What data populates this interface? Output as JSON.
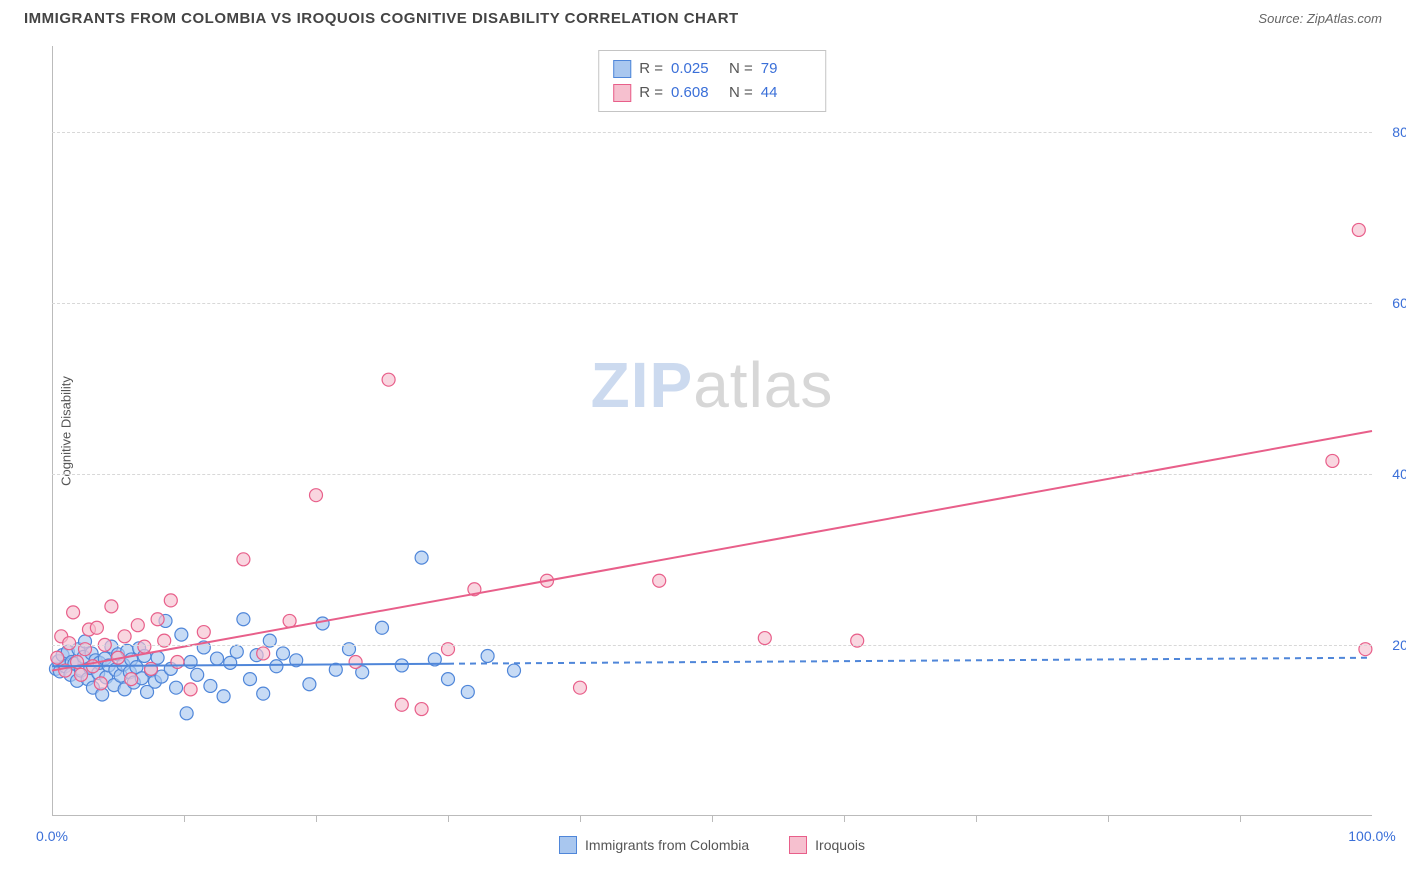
{
  "header": {
    "title": "IMMIGRANTS FROM COLOMBIA VS IROQUOIS COGNITIVE DISABILITY CORRELATION CHART",
    "source_label": "Source:",
    "source_value": "ZipAtlas.com"
  },
  "axes": {
    "y_label": "Cognitive Disability",
    "y_ticks": [
      20.0,
      40.0,
      60.0,
      80.0
    ],
    "y_tick_labels": [
      "20.0%",
      "40.0%",
      "60.0%",
      "80.0%"
    ],
    "y_domain_min": 0.0,
    "y_domain_max": 90.0,
    "x_domain_min": 0.0,
    "x_domain_max": 100.0,
    "x_end_labels": [
      "0.0%",
      "100.0%"
    ],
    "x_minor_ticks": [
      10,
      20,
      30,
      40,
      50,
      60,
      70,
      80,
      90
    ]
  },
  "series": {
    "a": {
      "name": "Immigrants from Colombia",
      "fill": "#a9c7ef",
      "stroke": "#4f86d9",
      "r_value": "0.025",
      "n_value": "79",
      "trend": {
        "y_at_x0": 17.5,
        "y_at_x100": 18.5,
        "solid_until_x": 30,
        "dashed": true
      },
      "points": [
        [
          0.3,
          17.2
        ],
        [
          0.5,
          18.1
        ],
        [
          0.6,
          16.9
        ],
        [
          0.8,
          18.8
        ],
        [
          1.0,
          17.5
        ],
        [
          1.2,
          19.2
        ],
        [
          1.4,
          16.5
        ],
        [
          1.5,
          18.0
        ],
        [
          1.7,
          17.8
        ],
        [
          1.9,
          15.8
        ],
        [
          2.0,
          19.5
        ],
        [
          2.2,
          17.0
        ],
        [
          2.4,
          18.6
        ],
        [
          2.5,
          20.4
        ],
        [
          2.7,
          16.0
        ],
        [
          2.9,
          17.3
        ],
        [
          3.0,
          19.0
        ],
        [
          3.1,
          15.0
        ],
        [
          3.3,
          18.2
        ],
        [
          3.5,
          16.7
        ],
        [
          3.6,
          17.9
        ],
        [
          3.8,
          14.2
        ],
        [
          4.0,
          18.4
        ],
        [
          4.1,
          16.2
        ],
        [
          4.3,
          17.6
        ],
        [
          4.5,
          19.8
        ],
        [
          4.7,
          15.3
        ],
        [
          4.8,
          17.1
        ],
        [
          5.0,
          18.9
        ],
        [
          5.2,
          16.4
        ],
        [
          5.4,
          17.7
        ],
        [
          5.5,
          14.8
        ],
        [
          5.7,
          19.3
        ],
        [
          5.9,
          16.8
        ],
        [
          6.0,
          18.3
        ],
        [
          6.2,
          15.6
        ],
        [
          6.4,
          17.4
        ],
        [
          6.6,
          19.6
        ],
        [
          6.8,
          16.1
        ],
        [
          7.0,
          18.7
        ],
        [
          7.2,
          14.5
        ],
        [
          7.5,
          17.0
        ],
        [
          7.8,
          15.7
        ],
        [
          8.0,
          18.5
        ],
        [
          8.3,
          16.3
        ],
        [
          8.6,
          22.8
        ],
        [
          9.0,
          17.2
        ],
        [
          9.4,
          15.0
        ],
        [
          9.8,
          21.2
        ],
        [
          10.2,
          12.0
        ],
        [
          10.5,
          18.0
        ],
        [
          11.0,
          16.5
        ],
        [
          11.5,
          19.7
        ],
        [
          12.0,
          15.2
        ],
        [
          12.5,
          18.4
        ],
        [
          13.0,
          14.0
        ],
        [
          13.5,
          17.9
        ],
        [
          14.0,
          19.2
        ],
        [
          14.5,
          23.0
        ],
        [
          15.0,
          16.0
        ],
        [
          15.5,
          18.8
        ],
        [
          16.0,
          14.3
        ],
        [
          16.5,
          20.5
        ],
        [
          17.0,
          17.5
        ],
        [
          17.5,
          19.0
        ],
        [
          18.5,
          18.2
        ],
        [
          19.5,
          15.4
        ],
        [
          20.5,
          22.5
        ],
        [
          21.5,
          17.1
        ],
        [
          22.5,
          19.5
        ],
        [
          23.5,
          16.8
        ],
        [
          25.0,
          22.0
        ],
        [
          26.5,
          17.6
        ],
        [
          28.0,
          30.2
        ],
        [
          29.0,
          18.3
        ],
        [
          30.0,
          16.0
        ],
        [
          31.5,
          14.5
        ],
        [
          33.0,
          18.7
        ],
        [
          35.0,
          17.0
        ]
      ]
    },
    "b": {
      "name": "Iroquois",
      "fill": "#f6c0cf",
      "stroke": "#e85f8a",
      "r_value": "0.608",
      "n_value": "44",
      "trend": {
        "y_at_x0": 17.0,
        "y_at_x100": 45.0,
        "solid_until_x": 100,
        "dashed": false
      },
      "points": [
        [
          0.4,
          18.5
        ],
        [
          0.7,
          21.0
        ],
        [
          1.0,
          17.0
        ],
        [
          1.3,
          20.2
        ],
        [
          1.6,
          23.8
        ],
        [
          1.9,
          18.0
        ],
        [
          2.2,
          16.5
        ],
        [
          2.5,
          19.5
        ],
        [
          2.8,
          21.8
        ],
        [
          3.1,
          17.5
        ],
        [
          3.4,
          22.0
        ],
        [
          3.7,
          15.5
        ],
        [
          4.0,
          20.0
        ],
        [
          4.5,
          24.5
        ],
        [
          5.0,
          18.5
        ],
        [
          5.5,
          21.0
        ],
        [
          6.0,
          16.0
        ],
        [
          6.5,
          22.3
        ],
        [
          7.0,
          19.8
        ],
        [
          7.5,
          17.2
        ],
        [
          8.0,
          23.0
        ],
        [
          8.5,
          20.5
        ],
        [
          9.0,
          25.2
        ],
        [
          9.5,
          18.0
        ],
        [
          10.5,
          14.8
        ],
        [
          11.5,
          21.5
        ],
        [
          14.5,
          30.0
        ],
        [
          16.0,
          19.0
        ],
        [
          18.0,
          22.8
        ],
        [
          20.0,
          37.5
        ],
        [
          23.0,
          18.0
        ],
        [
          25.5,
          51.0
        ],
        [
          26.5,
          13.0
        ],
        [
          28.0,
          12.5
        ],
        [
          30.0,
          19.5
        ],
        [
          32.0,
          26.5
        ],
        [
          37.5,
          27.5
        ],
        [
          40.0,
          15.0
        ],
        [
          46.0,
          27.5
        ],
        [
          54.0,
          20.8
        ],
        [
          61.0,
          20.5
        ],
        [
          97.0,
          41.5
        ],
        [
          99.0,
          68.5
        ],
        [
          99.5,
          19.5
        ]
      ]
    }
  },
  "stats_box": {
    "r_label": "R =",
    "n_label": "N ="
  },
  "legend": {
    "items": [
      "a",
      "b"
    ]
  },
  "watermark": {
    "part1": "ZIP",
    "part2": "atlas"
  },
  "styling": {
    "marker_radius": 6.5,
    "marker_stroke_width": 1.2,
    "trend_line_width": 2,
    "grid_color": "#d8d8d8",
    "axis_color": "#bbbbbb",
    "tick_label_color": "#3a6fd8",
    "background": "#ffffff"
  }
}
